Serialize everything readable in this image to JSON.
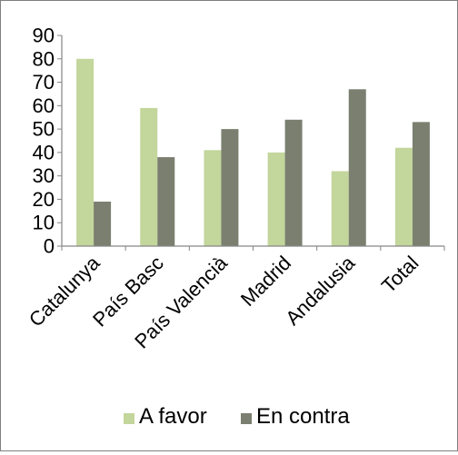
{
  "chart_data": {
    "type": "bar",
    "categories": [
      "Catalunya",
      "País Basc",
      "País Valencià",
      "Madrid",
      "Andalusia",
      "Total"
    ],
    "series": [
      {
        "name": "A favor",
        "color": "#c3d69b",
        "values": [
          80,
          59,
          41,
          40,
          32,
          42
        ]
      },
      {
        "name": "En contra",
        "color": "#7a7f6f",
        "values": [
          19,
          38,
          50,
          54,
          67,
          53
        ]
      }
    ],
    "yticks": [
      0,
      10,
      20,
      30,
      40,
      50,
      60,
      70,
      80,
      90
    ],
    "ylim": [
      0,
      90
    ],
    "grid": false,
    "legend_position": "bottom",
    "title": "",
    "xlabel": "",
    "ylabel": ""
  }
}
